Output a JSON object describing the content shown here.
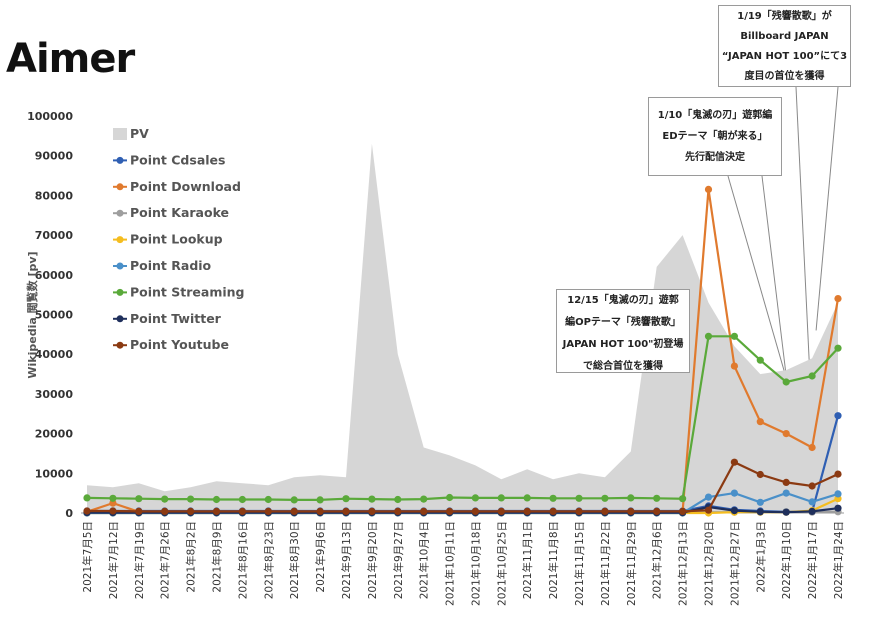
{
  "artist": "Aimer",
  "chart_data": {
    "type": "line",
    "ylabel": "Wikipedia 閲覧数 [pv]",
    "ylim": [
      0,
      100000
    ],
    "yticks": [
      0,
      10000,
      20000,
      30000,
      40000,
      50000,
      60000,
      70000,
      80000,
      90000,
      100000
    ],
    "grid": false,
    "legend_position": "top-left",
    "categories": [
      "2021年7月5日",
      "2021年7月12日",
      "2021年7月19日",
      "2021年7月26日",
      "2021年8月2日",
      "2021年8月9日",
      "2021年8月16日",
      "2021年8月23日",
      "2021年8月30日",
      "2021年9月6日",
      "2021年9月13日",
      "2021年9月20日",
      "2021年9月27日",
      "2021年10月4日",
      "2021年10月11日",
      "2021年10月18日",
      "2021年10月25日",
      "2021年11月1日",
      "2021年11月8日",
      "2021年11月15日",
      "2021年11月22日",
      "2021年11月29日",
      "2021年12月6日",
      "2021年12月13日",
      "2021年12月20日",
      "2021年12月27日",
      "2022年1月3日",
      "2022年1月10日",
      "2022年1月17日",
      "2022年1月24日"
    ],
    "area": {
      "name": "PV",
      "color": "#d6d6d6",
      "values": [
        7000,
        6500,
        7500,
        5500,
        6500,
        8000,
        7500,
        7000,
        9000,
        9500,
        9000,
        93000,
        40000,
        16500,
        14500,
        12000,
        8500,
        11000,
        8500,
        10000,
        9000,
        15500,
        62000,
        70000,
        53000,
        42000,
        35000,
        36000,
        39000,
        53000
      ]
    },
    "series": [
      {
        "name": "Point Cdsales",
        "color": "#2f5fb3",
        "values": [
          500,
          500,
          500,
          500,
          500,
          500,
          500,
          500,
          500,
          500,
          500,
          500,
          500,
          500,
          500,
          500,
          500,
          500,
          500,
          500,
          500,
          500,
          500,
          500,
          1800,
          800,
          500,
          300,
          300,
          24500
        ]
      },
      {
        "name": "Point Download",
        "color": "#e07a2e",
        "values": [
          300,
          2500,
          300,
          300,
          300,
          300,
          300,
          300,
          300,
          300,
          300,
          300,
          300,
          300,
          300,
          300,
          300,
          300,
          300,
          300,
          300,
          300,
          300,
          300,
          81500,
          37000,
          23000,
          20000,
          16500,
          54000
        ]
      },
      {
        "name": "Point Karaoke",
        "color": "#9e9e9e",
        "values": [
          0,
          0,
          0,
          0,
          0,
          0,
          0,
          0,
          0,
          0,
          0,
          0,
          0,
          0,
          0,
          0,
          0,
          0,
          0,
          0,
          0,
          0,
          0,
          0,
          200,
          200,
          200,
          200,
          200,
          300
        ]
      },
      {
        "name": "Point Lookup",
        "color": "#f5bd1f",
        "values": [
          0,
          0,
          0,
          0,
          0,
          0,
          0,
          0,
          0,
          0,
          0,
          0,
          0,
          0,
          0,
          0,
          0,
          0,
          0,
          0,
          0,
          0,
          0,
          0,
          0,
          200,
          200,
          200,
          600,
          3600
        ]
      },
      {
        "name": "Point Radio",
        "color": "#4a90c9",
        "values": [
          0,
          0,
          0,
          0,
          0,
          0,
          0,
          0,
          0,
          0,
          0,
          0,
          0,
          0,
          0,
          0,
          0,
          0,
          0,
          0,
          0,
          0,
          0,
          0,
          4000,
          5000,
          2700,
          5000,
          2800,
          4800
        ]
      },
      {
        "name": "Point Streaming",
        "color": "#5aa93a",
        "values": [
          3800,
          3700,
          3600,
          3500,
          3500,
          3400,
          3400,
          3400,
          3300,
          3300,
          3600,
          3500,
          3400,
          3500,
          3900,
          3800,
          3800,
          3800,
          3700,
          3700,
          3700,
          3800,
          3700,
          3600,
          44500,
          44500,
          38500,
          33000,
          34500,
          41500
        ]
      },
      {
        "name": "Point Twitter",
        "color": "#1f2f5c",
        "values": [
          100,
          100,
          100,
          100,
          100,
          100,
          100,
          100,
          100,
          100,
          100,
          100,
          100,
          100,
          100,
          100,
          100,
          100,
          100,
          100,
          100,
          100,
          100,
          100,
          1500,
          600,
          300,
          200,
          400,
          1200
        ]
      },
      {
        "name": "Point Youtube",
        "color": "#8b3a12",
        "values": [
          500,
          500,
          400,
          400,
          400,
          400,
          400,
          400,
          400,
          400,
          400,
          400,
          400,
          400,
          400,
          400,
          400,
          400,
          400,
          400,
          400,
          400,
          400,
          400,
          700,
          12800,
          9700,
          7700,
          6800,
          9800
        ]
      }
    ],
    "annotations": [
      {
        "text": "12/15「鬼滅の刃」遊郭\n編OPテーマ「残響散歌」\nJAPAN HOT 100\"初登場\nで総合首位を獲得",
        "target_index": 23
      },
      {
        "text": "1/10「鬼滅の刃」遊郭編\nEDテーマ「朝が来る」\n先行配信決定",
        "target_index": 27
      },
      {
        "text": "1/19「残響散歌」が\nBillboard JAPAN\n“JAPAN HOT 100”にて3\n度目の首位を獲得",
        "target_index": 28
      }
    ]
  }
}
